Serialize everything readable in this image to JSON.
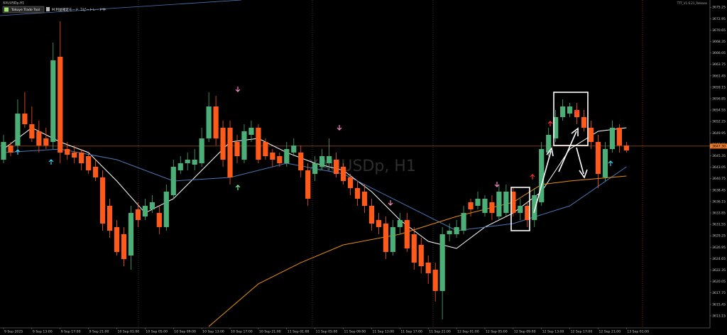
{
  "chart_data": {
    "type": "candlestick",
    "title": "XAUUSDp,H1",
    "watermark": "XAUUSDp, H1",
    "button_label": "Tokuye Trade Tool",
    "status_text": "M:利益確定モード コピートレード中",
    "version_text": "TTT_V1.6.21_Release",
    "up_color": "#4caf78",
    "down_color": "#ff5a1a",
    "categories": [
      "9 Sep 2025",
      null,
      null,
      null,
      "9 Sep 13:00",
      null,
      null,
      null,
      "9 Sep 17:00",
      null,
      null,
      null,
      "9 Sep 21:00",
      null,
      null,
      null,
      "10 Sep 01:00",
      null,
      null,
      null,
      "10 Sep 05:00",
      null,
      null,
      null,
      "10 Sep 09:00",
      null,
      null,
      null,
      "10 Sep 13:00",
      null,
      null,
      null,
      "10 Sep 17:00",
      null,
      null,
      null,
      "10 Sep 21:00",
      null,
      null,
      null,
      "11 Sep 01:00",
      null,
      null,
      null,
      "11 Sep 05:00",
      null,
      null,
      null,
      "11 Sep 09:00",
      null,
      null,
      null,
      "11 Sep 13:00",
      null,
      null,
      null,
      "11 Sep 17:00",
      null,
      null,
      null,
      "11 Sep 21:00",
      null,
      null,
      null,
      "12 Sep 01:00",
      null,
      null,
      null,
      "12 Sep 05:00",
      null,
      null,
      null,
      "12 Sep 09:00",
      null,
      null,
      null,
      "12 Sep 13:00",
      null,
      null,
      null,
      "12 Sep 17:00",
      null,
      null,
      null,
      "12 Sep 21:00",
      null,
      null,
      null,
      "13 Sep 01:00"
    ],
    "open": [
      3644.57,
      3647.42,
      3647.42,
      3653.85,
      3651.71,
      3650.28,
      3648.85,
      3648.14,
      3665.28,
      3646.71,
      3646.0,
      3646.0,
      3645.28,
      3643.14,
      3641.0,
      3635.28,
      3631.0,
      3629.57,
      3625.28,
      3634.57,
      3633.14,
      3634.57,
      3633.85,
      3631.0,
      3637.42,
      3642.42,
      3643.85,
      3643.57,
      3643.85,
      3648.85,
      3655.28,
      3651.0,
      3651.0,
      3648.14,
      3644.57,
      3649.57,
      3651.0,
      3648.14,
      3646.0,
      3645.28,
      3643.85,
      3646.0,
      3646.0,
      3642.42,
      3641.71,
      3643.14,
      3643.85,
      3644.57,
      3643.14,
      3641.0,
      3638.85,
      3638.14,
      3635.28,
      3632.42,
      3631.71,
      3626.0,
      3631.0,
      3632.42,
      3629.57,
      3627.42,
      3623.85,
      3622.42,
      3618.14,
      3629.57,
      3629.57,
      3630.28,
      3636.0,
      3635.28,
      3633.85,
      3636.0,
      3633.14,
      3633.85,
      3638.14,
      3633.85,
      3635.28,
      3632.42,
      3636.0,
      3646.0,
      3648.85,
      3653.14,
      3653.85,
      3654.57,
      3653.14,
      3651.0,
      3648.14,
      3641.0,
      3646.71,
      3651.0,
      3647.42
    ],
    "high": [
      3649.57,
      3648.14,
      3656.71,
      3658.14,
      3655.28,
      3652.42,
      3651.0,
      3668.14,
      3672.42,
      3648.14,
      3647.42,
      3646.71,
      3646.0,
      3644.57,
      3642.42,
      3636.71,
      3632.42,
      3631.0,
      3635.28,
      3636.0,
      3636.71,
      3637.42,
      3635.28,
      3639.57,
      3644.57,
      3645.28,
      3646.0,
      3646.71,
      3651.0,
      3658.14,
      3657.42,
      3652.42,
      3652.42,
      3649.57,
      3651.71,
      3652.42,
      3651.71,
      3648.85,
      3646.71,
      3646.0,
      3648.14,
      3648.85,
      3647.42,
      3643.85,
      3645.28,
      3646.71,
      3648.85,
      3646.0,
      3643.85,
      3641.71,
      3640.28,
      3639.57,
      3636.71,
      3633.85,
      3633.14,
      3632.42,
      3633.85,
      3633.85,
      3631.0,
      3628.85,
      3625.28,
      3623.85,
      3631.0,
      3631.71,
      3632.42,
      3635.28,
      3636.71,
      3638.14,
      3637.42,
      3637.42,
      3639.57,
      3639.57,
      3638.85,
      3636.71,
      3636.0,
      3638.85,
      3648.14,
      3651.0,
      3654.57,
      3656.71,
      3656.0,
      3656.0,
      3654.57,
      3652.42,
      3649.57,
      3648.14,
      3652.42,
      3651.71,
      3648.14
    ],
    "low": [
      3643.85,
      3645.28,
      3646.71,
      3651.0,
      3648.14,
      3646.0,
      3646.71,
      3646.71,
      3643.85,
      3644.57,
      3643.85,
      3642.42,
      3641.71,
      3640.28,
      3630.28,
      3628.85,
      3625.28,
      3623.14,
      3622.42,
      3631.0,
      3632.42,
      3633.85,
      3629.57,
      3630.28,
      3636.71,
      3641.71,
      3642.42,
      3642.42,
      3643.14,
      3648.14,
      3647.42,
      3643.14,
      3639.57,
      3643.85,
      3643.85,
      3648.14,
      3643.85,
      3644.57,
      3643.14,
      3643.14,
      3643.14,
      3645.28,
      3641.0,
      3635.28,
      3640.28,
      3642.42,
      3642.42,
      3641.0,
      3639.57,
      3637.42,
      3635.28,
      3633.85,
      3630.28,
      3629.57,
      3624.57,
      3625.28,
      3629.57,
      3626.0,
      3622.42,
      3621.71,
      3619.57,
      3616.0,
      3612.42,
      3628.14,
      3628.85,
      3629.57,
      3633.14,
      3634.57,
      3633.14,
      3632.42,
      3632.42,
      3633.14,
      3633.14,
      3632.42,
      3631.0,
      3631.0,
      3635.28,
      3645.28,
      3648.14,
      3652.42,
      3653.14,
      3651.71,
      3650.28,
      3646.71,
      3638.85,
      3640.28,
      3646.0,
      3646.0,
      3646.0
    ],
    "close": [
      3648.14,
      3646.0,
      3653.85,
      3651.71,
      3648.85,
      3647.42,
      3647.42,
      3664.57,
      3646.0,
      3645.57,
      3645.0,
      3643.85,
      3642.42,
      3641.0,
      3631.71,
      3630.28,
      3626.0,
      3624.57,
      3633.85,
      3632.42,
      3635.28,
      3636.0,
      3631.0,
      3638.14,
      3643.14,
      3643.85,
      3644.57,
      3644.57,
      3648.85,
      3655.28,
      3648.85,
      3644.57,
      3641.0,
      3645.28,
      3650.28,
      3651.0,
      3644.57,
      3645.28,
      3644.57,
      3643.85,
      3646.71,
      3647.42,
      3642.42,
      3636.71,
      3643.85,
      3645.28,
      3645.28,
      3641.71,
      3640.28,
      3638.85,
      3636.71,
      3635.28,
      3631.71,
      3631.0,
      3626.0,
      3631.0,
      3632.42,
      3626.71,
      3623.85,
      3623.14,
      3621.71,
      3618.14,
      3629.57,
      3630.28,
      3631.0,
      3633.85,
      3634.57,
      3636.71,
      3636.71,
      3633.85,
      3638.14,
      3638.14,
      3633.85,
      3635.28,
      3632.42,
      3637.42,
      3646.71,
      3649.57,
      3653.14,
      3655.28,
      3655.28,
      3653.14,
      3651.0,
      3648.14,
      3641.71,
      3646.71,
      3651.0,
      3647.42,
      3646.43
    ],
    "lines": [
      {
        "color": "#ffffff",
        "x": [
          0,
          4,
          8,
          12,
          16,
          20,
          24,
          28,
          32,
          36,
          40,
          44,
          48,
          52,
          56,
          60,
          64,
          68,
          72,
          76,
          80,
          84,
          88
        ],
        "values": [
          3646.71,
          3651.0,
          3648.14,
          3646.0,
          3640.28,
          3633.85,
          3636.71,
          3642.42,
          3648.14,
          3648.85,
          3646.0,
          3643.85,
          3642.42,
          3638.14,
          3632.42,
          3628.14,
          3626.71,
          3631.0,
          3633.85,
          3638.14,
          3646.71,
          3650.28,
          3651.0
        ]
      },
      {
        "color": "#4a78b8",
        "x": [
          0,
          8,
          16,
          24,
          32,
          40,
          48,
          56,
          64,
          72,
          80,
          88
        ],
        "values": [
          3646.0,
          3646.71,
          3644.57,
          3640.28,
          3641.0,
          3643.85,
          3641.71,
          3636.0,
          3630.28,
          3631.71,
          3635.28,
          3643.14
        ]
      },
      {
        "color": "#e8900c",
        "x": [
          29,
          36,
          42,
          48,
          56,
          64,
          72,
          76,
          80,
          88
        ],
        "values": [
          3611.0,
          3619.57,
          3623.85,
          3627.42,
          3629.57,
          3633.14,
          3636.0,
          3639.57,
          3640.28,
          3641.28
        ]
      }
    ],
    "price_line": {
      "value": 3647.3,
      "label": "3647.30",
      "color": "#e8782a"
    },
    "ylim": [
      3610.71,
      3676.71
    ],
    "yticks": [
      3613.15,
      3615.45,
      3617.75,
      3620.05,
      3622.35,
      3624.65,
      3626.95,
      3629.25,
      3631.55,
      3633.85,
      3636.15,
      3638.45,
      3640.75,
      3643.05,
      3645.35,
      3647.65,
      3649.95,
      3652.25,
      3654.55,
      3656.85,
      3659.15,
      3661.45,
      3663.75,
      3666.05,
      3668.35,
      3670.65,
      3672.95,
      3675.25
    ]
  }
}
